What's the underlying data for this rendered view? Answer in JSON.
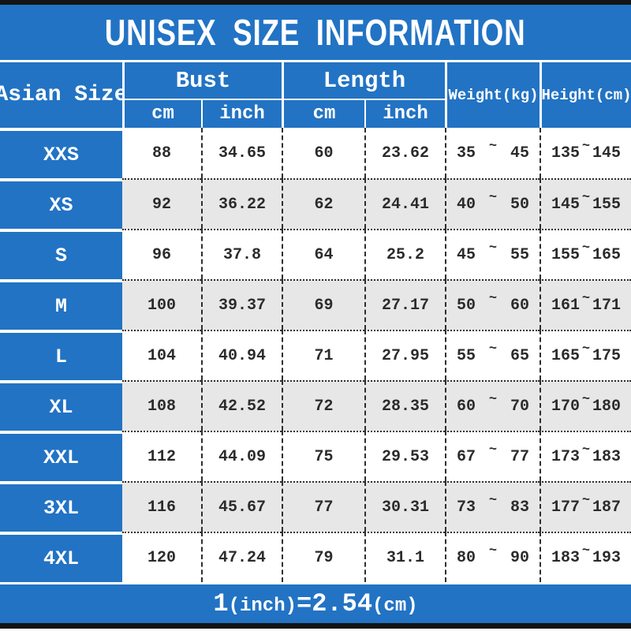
{
  "colors": {
    "accent_blue": "#2273c4",
    "bar_black": "#141414",
    "row_alt_gray": "#e7e7e7",
    "text_dark": "#2b2b2b",
    "text_white": "#ffffff"
  },
  "banner": {
    "title": "UNISEX SIZE INFORMATION"
  },
  "table_header": {
    "size_column": "Asian Size",
    "bust_group": "Bust",
    "length_group": "Length",
    "unit_cm": "cm",
    "unit_inch": "inch",
    "weight_column": "Weight(kg)",
    "height_column": "Height(cm)"
  },
  "range_separator": "~",
  "footer": {
    "num1": "1",
    "unit1": "(inch)",
    "equals": "=",
    "num2": "2.54",
    "unit2": "(cm)"
  },
  "chart_data": {
    "type": "table",
    "title": "UNISEX SIZE INFORMATION",
    "note": "1(inch)=2.54(cm)",
    "columns": [
      "Asian Size",
      "Bust cm",
      "Bust inch",
      "Length cm",
      "Length inch",
      "Weight(kg)",
      "Height(cm)"
    ],
    "rows": [
      {
        "size": "XXS",
        "bust_cm": "88",
        "bust_inch": "34.65",
        "length_cm": "60",
        "length_inch": "23.62",
        "weight_min": "35",
        "weight_max": "45",
        "height_min": "135",
        "height_max": "145"
      },
      {
        "size": "XS",
        "bust_cm": "92",
        "bust_inch": "36.22",
        "length_cm": "62",
        "length_inch": "24.41",
        "weight_min": "40",
        "weight_max": "50",
        "height_min": "145",
        "height_max": "155"
      },
      {
        "size": "S",
        "bust_cm": "96",
        "bust_inch": "37.8",
        "length_cm": "64",
        "length_inch": "25.2",
        "weight_min": "45",
        "weight_max": "55",
        "height_min": "155",
        "height_max": "165"
      },
      {
        "size": "M",
        "bust_cm": "100",
        "bust_inch": "39.37",
        "length_cm": "69",
        "length_inch": "27.17",
        "weight_min": "50",
        "weight_max": "60",
        "height_min": "161",
        "height_max": "171"
      },
      {
        "size": "L",
        "bust_cm": "104",
        "bust_inch": "40.94",
        "length_cm": "71",
        "length_inch": "27.95",
        "weight_min": "55",
        "weight_max": "65",
        "height_min": "165",
        "height_max": "175"
      },
      {
        "size": "XL",
        "bust_cm": "108",
        "bust_inch": "42.52",
        "length_cm": "72",
        "length_inch": "28.35",
        "weight_min": "60",
        "weight_max": "70",
        "height_min": "170",
        "height_max": "180"
      },
      {
        "size": "XXL",
        "bust_cm": "112",
        "bust_inch": "44.09",
        "length_cm": "75",
        "length_inch": "29.53",
        "weight_min": "67",
        "weight_max": "77",
        "height_min": "173",
        "height_max": "183"
      },
      {
        "size": "3XL",
        "bust_cm": "116",
        "bust_inch": "45.67",
        "length_cm": "77",
        "length_inch": "30.31",
        "weight_min": "73",
        "weight_max": "83",
        "height_min": "177",
        "height_max": "187"
      },
      {
        "size": "4XL",
        "bust_cm": "120",
        "bust_inch": "47.24",
        "length_cm": "79",
        "length_inch": "31.1",
        "weight_min": "80",
        "weight_max": "90",
        "height_min": "183",
        "height_max": "193"
      }
    ]
  }
}
